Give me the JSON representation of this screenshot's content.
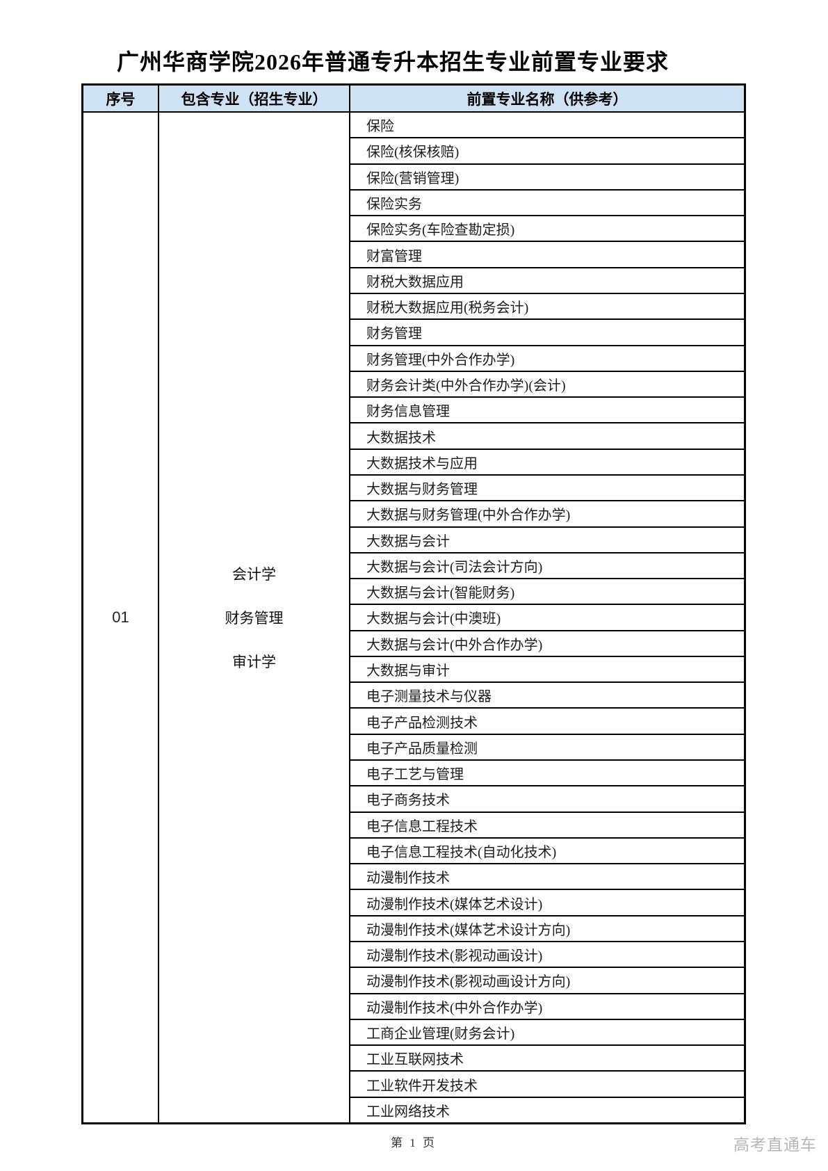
{
  "page": {
    "title": "广州华商学院2026年普通专升本招生专业前置专业要求",
    "page_number": "第 1 页",
    "watermark": "高考直通车"
  },
  "table": {
    "header_bg": "#cfe2f3",
    "headers": {
      "number": "序号",
      "included": "包含专业（招生专业）",
      "prerequisite": "前置专业名称（供参考）"
    },
    "group": {
      "number": "01",
      "included_majors": [
        "会计学",
        "财务管理",
        "审计学"
      ],
      "prerequisite_majors": [
        "保险",
        "保险(核保核赔)",
        "保险(营销管理)",
        "保险实务",
        "保险实务(车险查勘定损)",
        "财富管理",
        "财税大数据应用",
        "财税大数据应用(税务会计)",
        "财务管理",
        "财务管理(中外合作办学)",
        "财务会计类(中外合作办学)(会计)",
        "财务信息管理",
        "大数据技术",
        "大数据技术与应用",
        "大数据与财务管理",
        "大数据与财务管理(中外合作办学)",
        "大数据与会计",
        "大数据与会计(司法会计方向)",
        "大数据与会计(智能财务)",
        "大数据与会计(中澳班)",
        "大数据与会计(中外合作办学)",
        "大数据与审计",
        "电子测量技术与仪器",
        "电子产品检测技术",
        "电子产品质量检测",
        "电子工艺与管理",
        "电子商务技术",
        "电子信息工程技术",
        "电子信息工程技术(自动化技术)",
        "动漫制作技术",
        "动漫制作技术(媒体艺术设计)",
        "动漫制作技术(媒体艺术设计方向)",
        "动漫制作技术(影视动画设计)",
        "动漫制作技术(影视动画设计方向)",
        "动漫制作技术(中外合作办学)",
        "工商企业管理(财务会计)",
        "工业互联网技术",
        "工业软件开发技术",
        "工业网络技术"
      ]
    }
  }
}
